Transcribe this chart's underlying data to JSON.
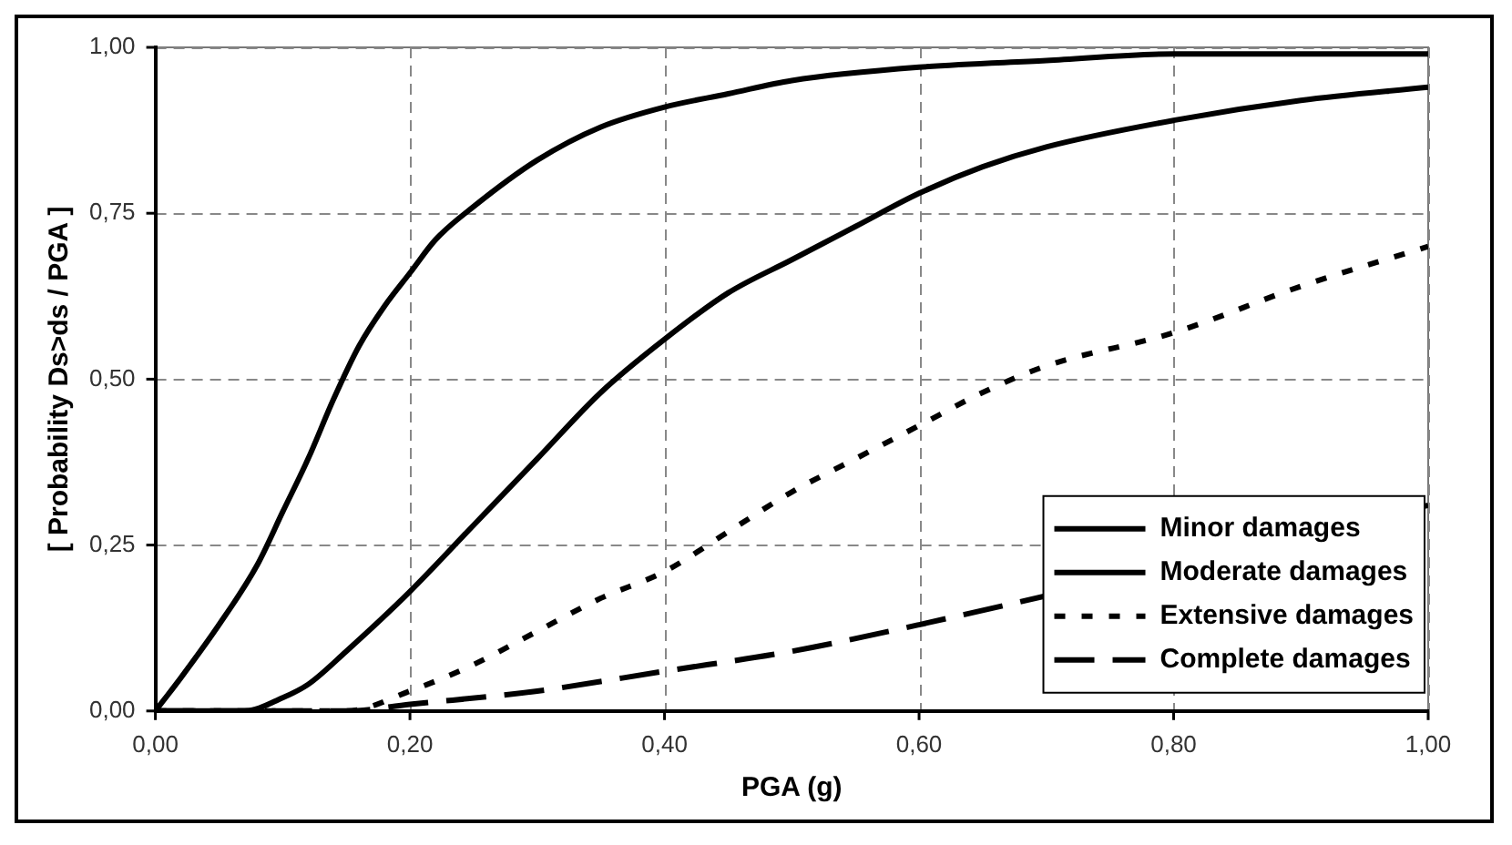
{
  "chart_data": {
    "type": "line",
    "xlabel": "PGA (g)",
    "ylabel": "[ Probability Ds>ds / PGA ]",
    "xlim": [
      0,
      1
    ],
    "ylim": [
      0,
      1
    ],
    "xticks": [
      {
        "value": 0,
        "label": "0,00"
      },
      {
        "value": 0.2,
        "label": "0,20"
      },
      {
        "value": 0.4,
        "label": "0,40"
      },
      {
        "value": 0.6,
        "label": "0,60"
      },
      {
        "value": 0.8,
        "label": "0,80"
      },
      {
        "value": 1,
        "label": "1,00"
      }
    ],
    "yticks": [
      {
        "value": 0,
        "label": "0,00"
      },
      {
        "value": 0.25,
        "label": "0,25"
      },
      {
        "value": 0.5,
        "label": "0,50"
      },
      {
        "value": 0.75,
        "label": "0,75"
      },
      {
        "value": 1,
        "label": "1,00"
      }
    ],
    "grid": true,
    "legend": "bottom right",
    "marker": "none",
    "series": [
      {
        "name": "Minor damages",
        "color": "#000000",
        "line_style": "solid",
        "x": [
          0,
          0.02,
          0.05,
          0.08,
          0.1,
          0.12,
          0.14,
          0.16,
          0.18,
          0.2,
          0.22,
          0.25,
          0.3,
          0.35,
          0.4,
          0.45,
          0.5,
          0.6,
          0.7,
          0.8,
          1
        ],
        "values": [
          0,
          0.05,
          0.13,
          0.22,
          0.3,
          0.38,
          0.47,
          0.55,
          0.61,
          0.66,
          0.71,
          0.76,
          0.83,
          0.88,
          0.91,
          0.93,
          0.95,
          0.97,
          0.98,
          0.99,
          0.99
        ]
      },
      {
        "name": "Moderate damages",
        "color": "#000000",
        "line_style": "solid",
        "x": [
          0,
          0.07,
          0.1,
          0.12,
          0.15,
          0.2,
          0.25,
          0.3,
          0.35,
          0.4,
          0.45,
          0.5,
          0.55,
          0.6,
          0.65,
          0.7,
          0.8,
          0.9,
          1
        ],
        "values": [
          0,
          0,
          0.02,
          0.04,
          0.09,
          0.18,
          0.28,
          0.38,
          0.48,
          0.56,
          0.63,
          0.68,
          0.73,
          0.78,
          0.82,
          0.85,
          0.89,
          0.92,
          0.94
        ]
      },
      {
        "name": "Extensive damages",
        "color": "#000000",
        "line_style": "dotted",
        "x": [
          0,
          0.15,
          0.2,
          0.25,
          0.3,
          0.35,
          0.4,
          0.45,
          0.5,
          0.55,
          0.6,
          0.65,
          0.7,
          0.8,
          0.9,
          1
        ],
        "values": [
          0,
          0,
          0.03,
          0.07,
          0.12,
          0.17,
          0.21,
          0.27,
          0.33,
          0.38,
          0.43,
          0.48,
          0.52,
          0.57,
          0.64,
          0.7
        ]
      },
      {
        "name": "Complete damages",
        "color": "#000000",
        "line_style": "dashed",
        "x": [
          0,
          0.15,
          0.2,
          0.3,
          0.4,
          0.5,
          0.6,
          0.7,
          0.8,
          0.9,
          1
        ],
        "values": [
          0,
          0,
          0.01,
          0.03,
          0.06,
          0.09,
          0.13,
          null,
          null,
          null,
          0.31
        ]
      }
    ]
  }
}
